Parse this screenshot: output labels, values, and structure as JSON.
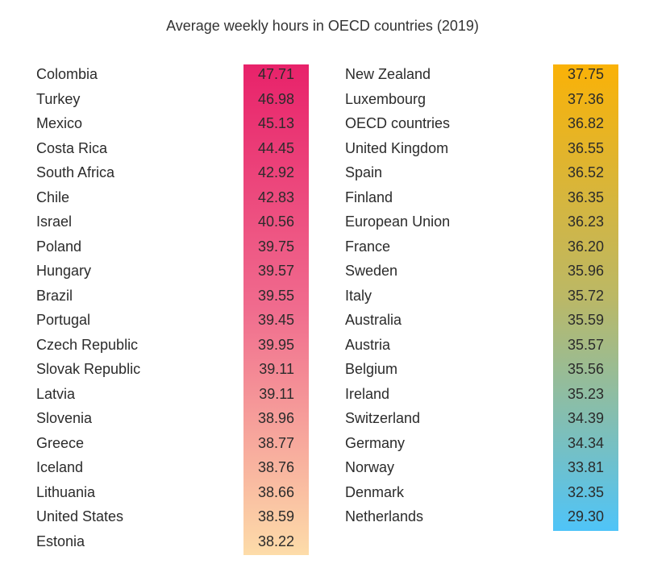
{
  "chart_data": {
    "type": "table",
    "title": "Average weekly hours in OECD countries (2019)",
    "columns": [
      {
        "gradient": [
          "#E8226A",
          "#F06C8E",
          "#FDDCA9"
        ],
        "rows": [
          {
            "country": "Colombia",
            "hours": "47.71"
          },
          {
            "country": "Turkey",
            "hours": "46.98"
          },
          {
            "country": "Mexico",
            "hours": "45.13"
          },
          {
            "country": "Costa Rica",
            "hours": "44.45"
          },
          {
            "country": "South Africa",
            "hours": "42.92"
          },
          {
            "country": "Chile",
            "hours": "42.83"
          },
          {
            "country": "Israel",
            "hours": "40.56"
          },
          {
            "country": "Poland",
            "hours": "39.75"
          },
          {
            "country": "Hungary",
            "hours": "39.57"
          },
          {
            "country": "Brazil",
            "hours": "39.55"
          },
          {
            "country": "Portugal",
            "hours": "39.45"
          },
          {
            "country": "Czech Republic",
            "hours": "39.95"
          },
          {
            "country": "Slovak Republic",
            "hours": "39.11"
          },
          {
            "country": "Latvia",
            "hours": "39.11"
          },
          {
            "country": "Slovenia",
            "hours": "38.96"
          },
          {
            "country": "Greece",
            "hours": "38.77"
          },
          {
            "country": "Iceland",
            "hours": "38.76"
          },
          {
            "country": "Lithuania",
            "hours": "38.66"
          },
          {
            "country": "United States",
            "hours": "38.59"
          },
          {
            "country": "Estonia",
            "hours": "38.22"
          }
        ]
      },
      {
        "gradient": [
          "#FAB207",
          "#BBB866",
          "#4FC4F8"
        ],
        "rows": [
          {
            "country": "New Zealand",
            "hours": "37.75"
          },
          {
            "country": "Luxembourg",
            "hours": "37.36"
          },
          {
            "country": "OECD countries",
            "hours": "36.82"
          },
          {
            "country": "United Kingdom",
            "hours": "36.55"
          },
          {
            "country": "Spain",
            "hours": "36.52"
          },
          {
            "country": "Finland",
            "hours": "36.35"
          },
          {
            "country": "European Union",
            "hours": "36.23"
          },
          {
            "country": "France",
            "hours": "36.20"
          },
          {
            "country": "Sweden",
            "hours": "35.96"
          },
          {
            "country": "Italy",
            "hours": "35.72"
          },
          {
            "country": "Australia",
            "hours": "35.59"
          },
          {
            "country": "Austria",
            "hours": "35.57"
          },
          {
            "country": "Belgium",
            "hours": "35.56"
          },
          {
            "country": "Ireland",
            "hours": "35.23"
          },
          {
            "country": "Switzerland",
            "hours": "34.39"
          },
          {
            "country": "Germany",
            "hours": "34.34"
          },
          {
            "country": "Norway",
            "hours": "33.81"
          },
          {
            "country": "Denmark",
            "hours": "32.35"
          },
          {
            "country": "Netherlands",
            "hours": "29.30"
          }
        ]
      }
    ]
  }
}
